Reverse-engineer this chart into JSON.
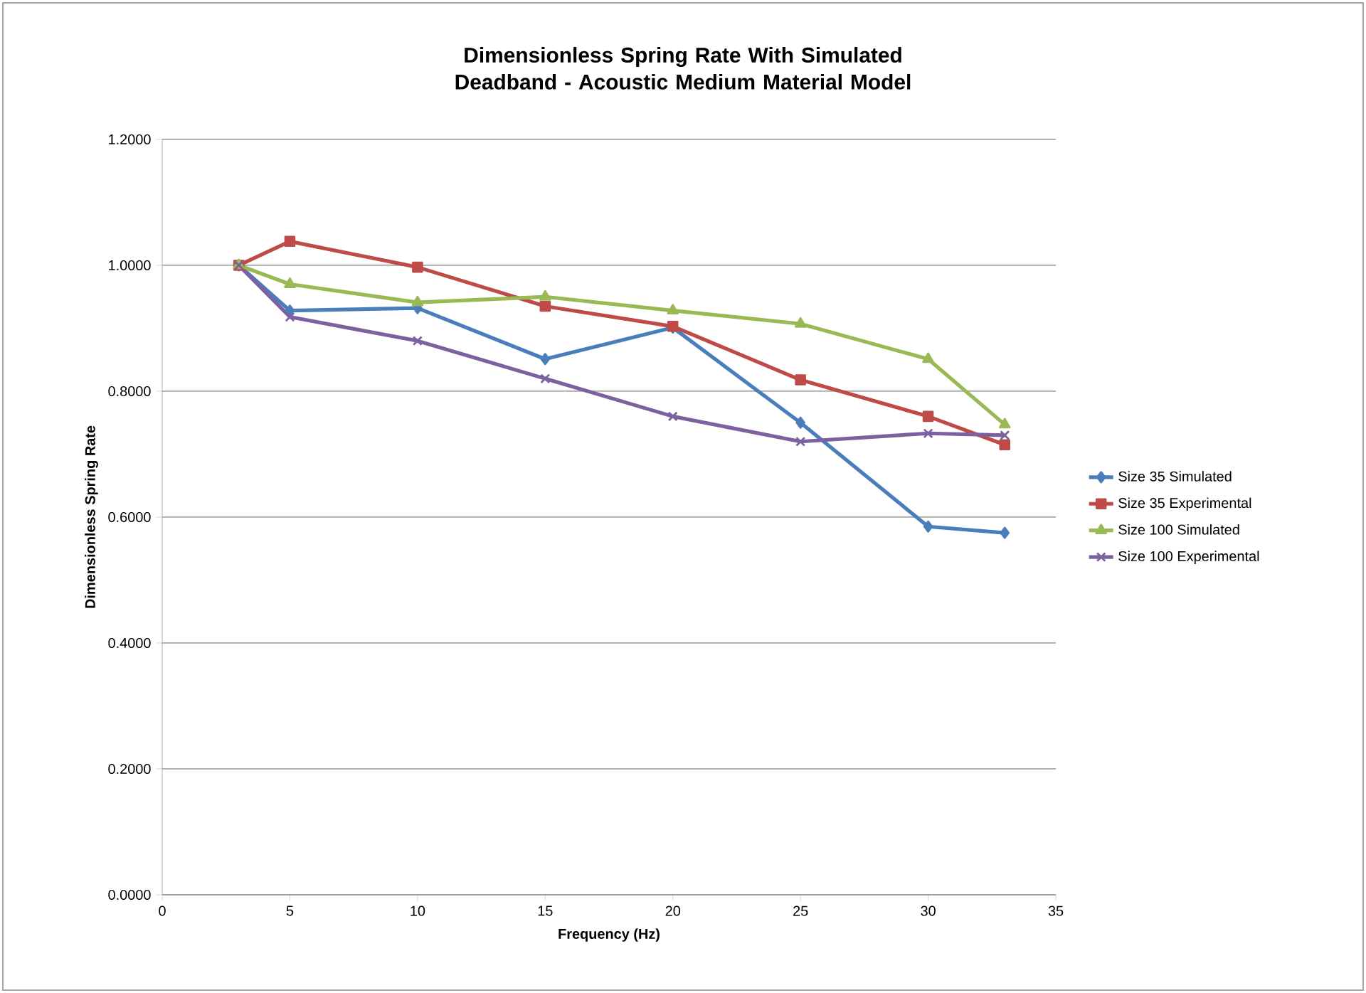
{
  "chart_data": {
    "type": "line",
    "title": "Dimensionless Spring Rate With Simulated Deadband - Acoustic Medium Material Model",
    "xlabel": "Frequency (Hz)",
    "ylabel": "Dimensionless  Spring Rate",
    "x": [
      3,
      5,
      10,
      15,
      20,
      25,
      30,
      33
    ],
    "series": [
      {
        "name": "Size 35 Simulated",
        "color": "#4a7ebb",
        "marker": "diamond",
        "values": [
          1.0,
          0.928,
          0.932,
          0.851,
          0.901,
          0.75,
          0.585,
          0.575
        ]
      },
      {
        "name": "Size 35 Experimental",
        "color": "#be4b48",
        "marker": "square",
        "values": [
          1.0,
          1.038,
          0.997,
          0.935,
          0.903,
          0.818,
          0.76,
          0.715
        ]
      },
      {
        "name": "Size 100 Simulated",
        "color": "#98b954",
        "marker": "triangle",
        "values": [
          1.0,
          0.97,
          0.941,
          0.95,
          0.928,
          0.907,
          0.851,
          0.747
        ]
      },
      {
        "name": "Size 100 Experimental",
        "color": "#7d60a0",
        "marker": "cross",
        "values": [
          1.0,
          0.918,
          0.88,
          0.82,
          0.76,
          0.72,
          0.733,
          0.73
        ]
      }
    ],
    "xlim": [
      0,
      35
    ],
    "xticks": [
      0,
      5,
      10,
      15,
      20,
      25,
      30,
      35
    ],
    "ylim": [
      0,
      1.2
    ],
    "yticks": [
      {
        "value": 0,
        "label": "0.0000"
      },
      {
        "value": 0.2,
        "label": "0.2000"
      },
      {
        "value": 0.4,
        "label": "0.4000"
      },
      {
        "value": 0.6,
        "label": "0.6000"
      },
      {
        "value": 0.8,
        "label": "0.8000"
      },
      {
        "value": 1.0,
        "label": "1.0000"
      },
      {
        "value": 1.2,
        "label": "1.2000"
      }
    ],
    "grid": "y",
    "legend": "right",
    "line_style": "solid"
  }
}
